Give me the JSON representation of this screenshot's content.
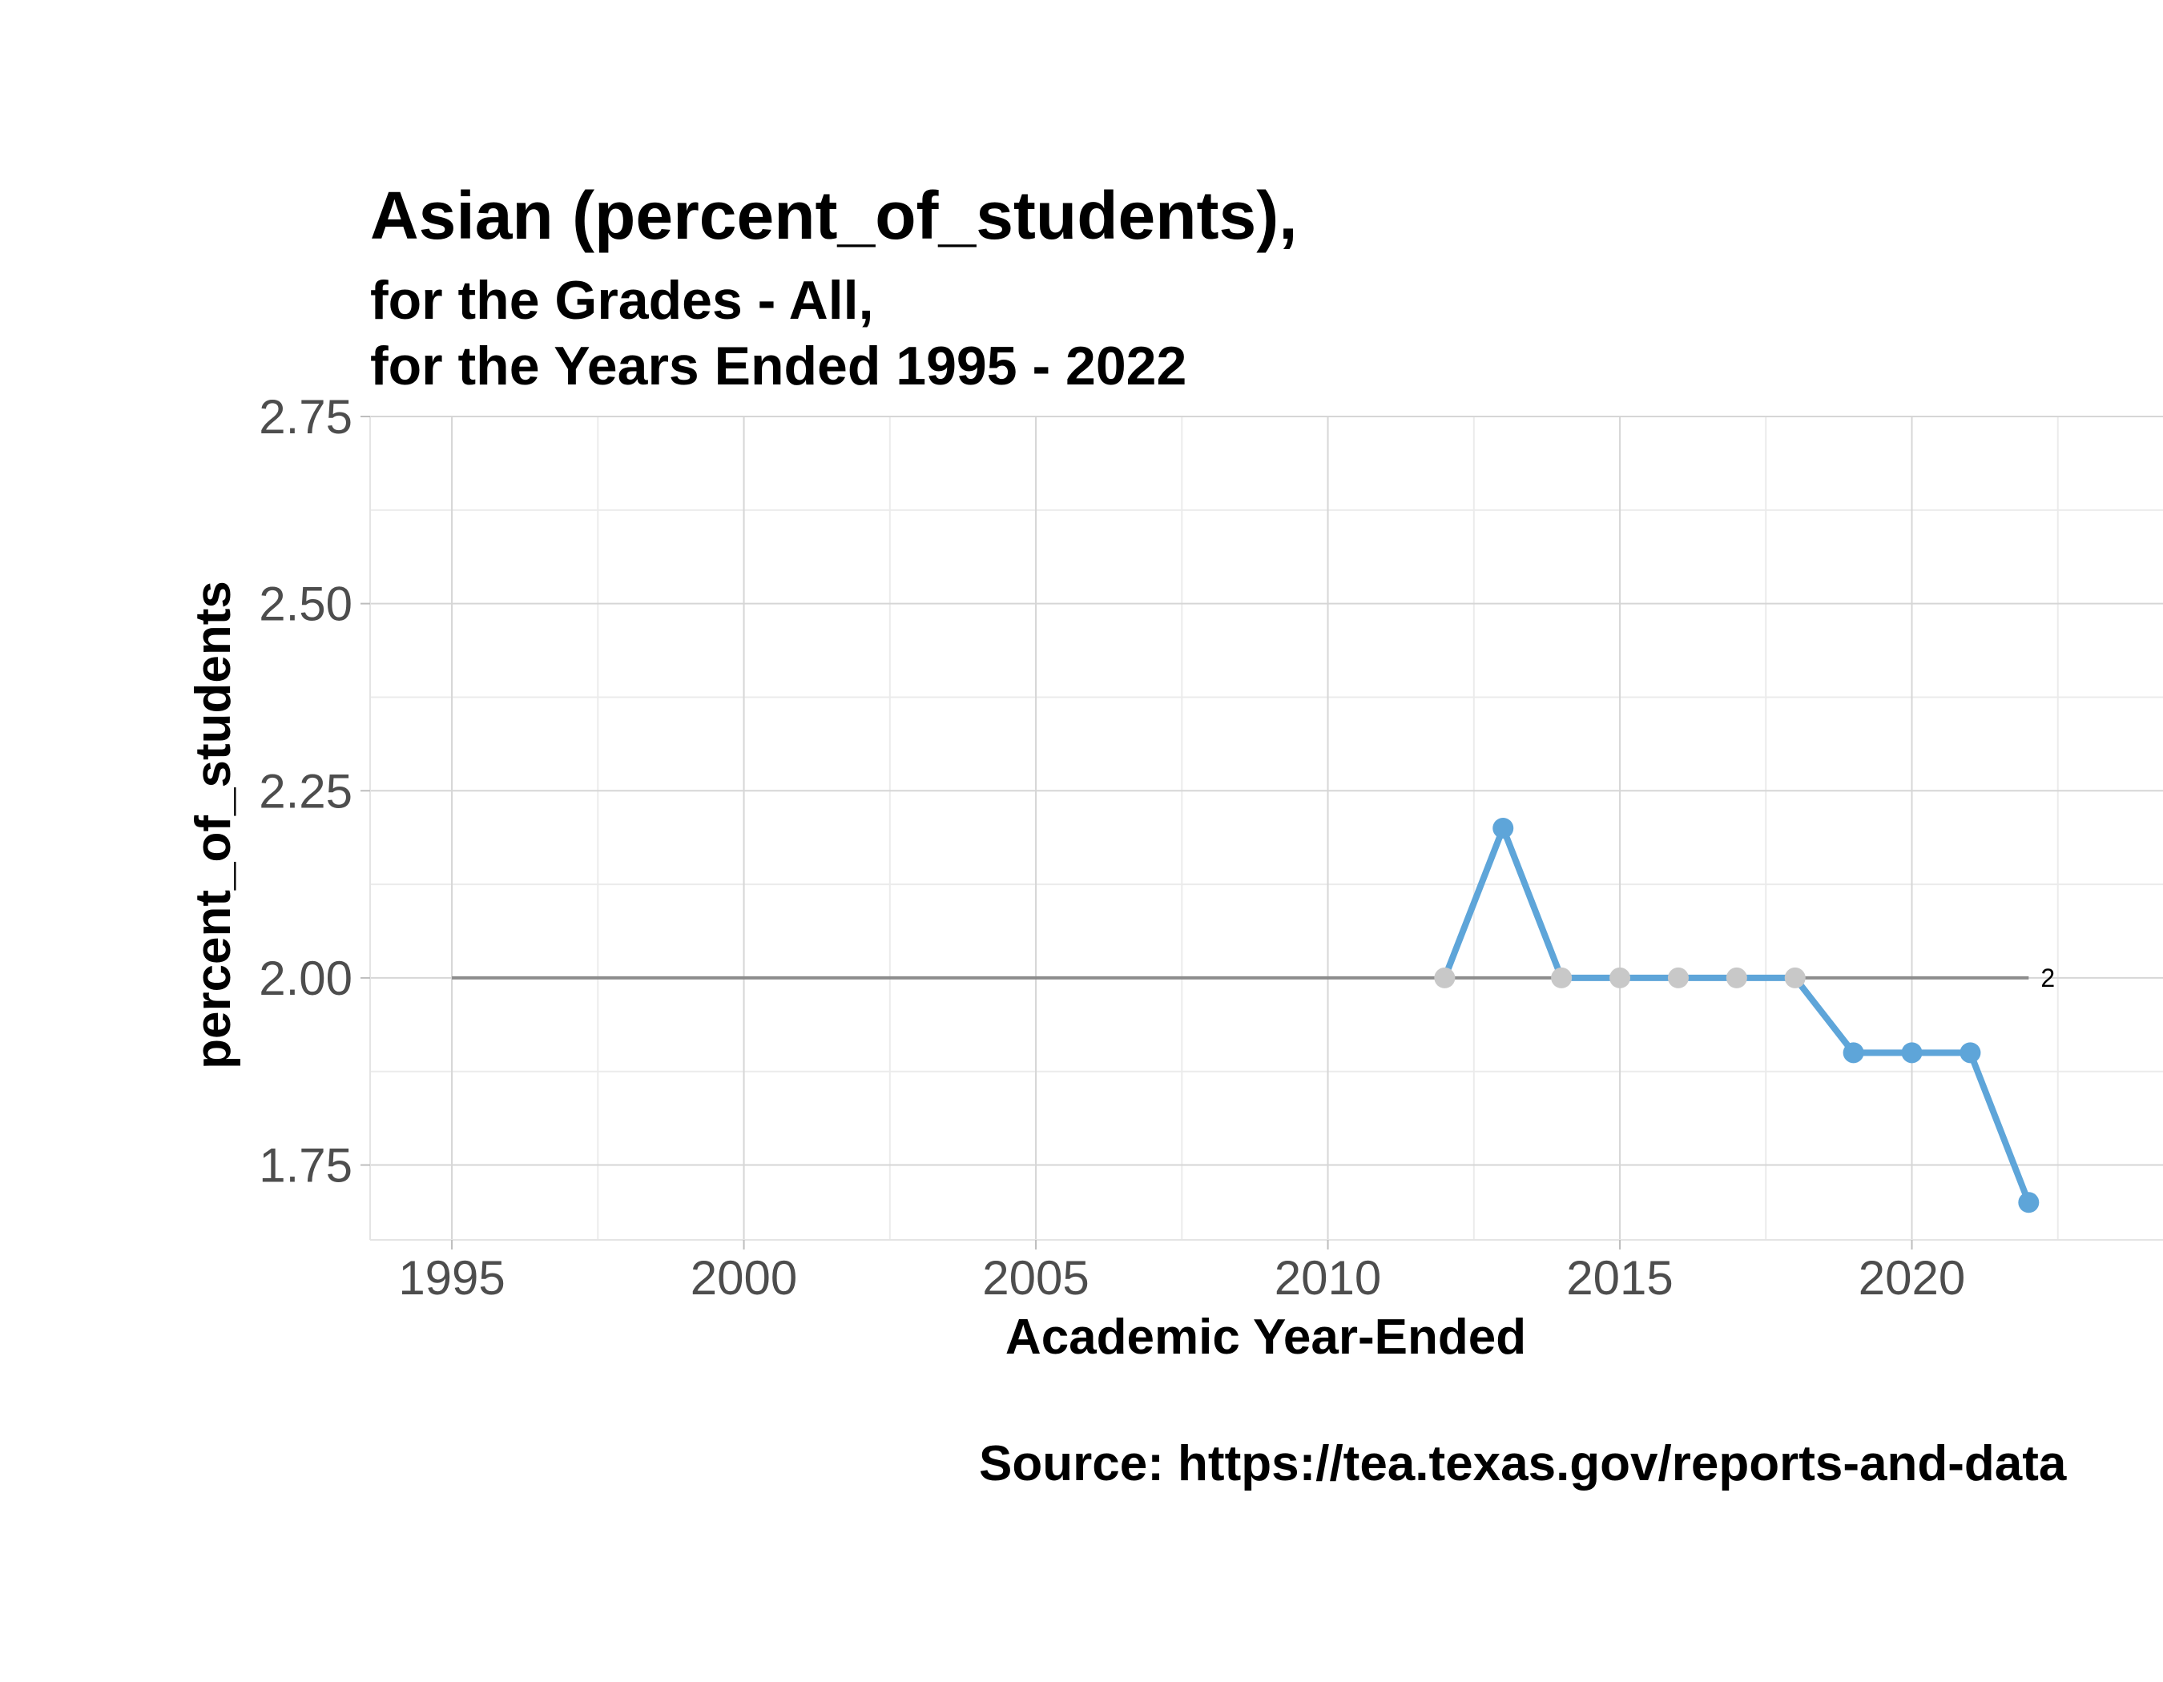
{
  "chart_data": {
    "type": "line",
    "title": "Asian (percent_of_students),",
    "subtitle_line1": "for the Grades - All,",
    "subtitle_line2": "for the Years Ended 1995  -  2022",
    "xlabel": "Academic Year-Ended",
    "ylabel": "percent_of_students",
    "caption": "Source:  https://tea.texas.gov/reports-and-data",
    "xlim": [
      1993.6,
      2024.3
    ],
    "ylim": [
      1.65,
      2.75
    ],
    "x_ticks": [
      1995,
      2000,
      2005,
      2010,
      2015,
      2020
    ],
    "x_tick_labels": [
      "1995",
      "2000",
      "2005",
      "2010",
      "2015",
      "2020"
    ],
    "y_ticks": [
      1.75,
      2.0,
      2.25,
      2.5,
      2.75
    ],
    "y_tick_labels": [
      "1.75",
      "2.00",
      "2.25",
      "2.50",
      "2.75"
    ],
    "grid": true,
    "reference_line": {
      "value": 2,
      "from": 1995,
      "to": 2022,
      "label": "2",
      "color": "#8c8c8c"
    },
    "series": [
      {
        "x": [
          2012,
          2013,
          2014,
          2015,
          2016,
          2017,
          2018,
          2019,
          2020,
          2021,
          2022
        ],
        "y": [
          2.0,
          2.2,
          2.0,
          2.0,
          2.0,
          2.0,
          2.0,
          1.9,
          1.9,
          1.9,
          1.7
        ],
        "line_color": "#5ea5d9",
        "point_colors": [
          "#c8c8c8",
          "#5ea5d9",
          "#c8c8c8",
          "#c8c8c8",
          "#c8c8c8",
          "#c8c8c8",
          "#c8c8c8",
          "#5ea5d9",
          "#5ea5d9",
          "#5ea5d9",
          "#5ea5d9"
        ]
      }
    ]
  }
}
